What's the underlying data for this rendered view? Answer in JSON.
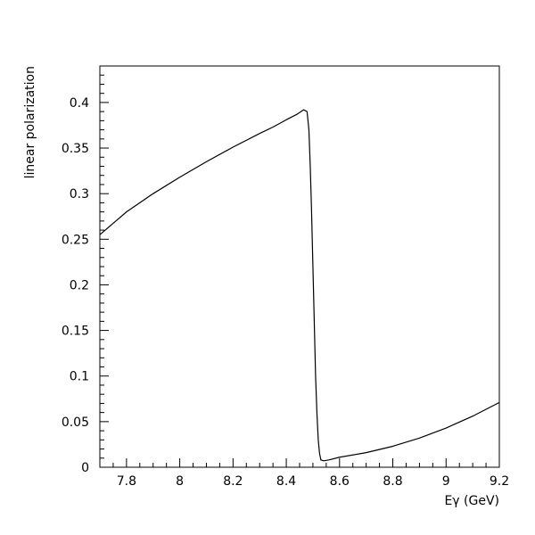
{
  "chart_data": {
    "type": "line",
    "title": "",
    "xlabel": "Eγ (GeV)",
    "ylabel": "linear polarization",
    "xlim": [
      7.7,
      9.2
    ],
    "ylim": [
      0,
      0.44
    ],
    "xticks": [
      7.8,
      8,
      8.2,
      8.4,
      8.6,
      8.8,
      9,
      9.2
    ],
    "xtick_labels": [
      "7.8",
      "8",
      "8.2",
      "8.4",
      "8.6",
      "8.8",
      "9",
      "9.2"
    ],
    "yticks": [
      0,
      0.05,
      0.1,
      0.15,
      0.2,
      0.25,
      0.3,
      0.35,
      0.4
    ],
    "ytick_labels": [
      "0",
      "0.05",
      "0.1",
      "0.15",
      "0.2",
      "0.25",
      "0.3",
      "0.35",
      "0.4"
    ],
    "grid": false,
    "legend": "none",
    "series": [
      {
        "color": "#000000",
        "x": [
          7.7,
          7.8,
          7.9,
          8.0,
          8.1,
          8.2,
          8.3,
          8.35,
          8.4,
          8.44,
          8.465,
          8.478,
          8.485,
          8.49,
          8.495,
          8.5,
          8.505,
          8.51,
          8.515,
          8.52,
          8.525,
          8.53,
          8.54,
          8.56,
          8.6,
          8.7,
          8.8,
          8.9,
          9.0,
          9.1,
          9.2
        ],
        "y": [
          0.255,
          0.28,
          0.3,
          0.318,
          0.335,
          0.351,
          0.366,
          0.373,
          0.381,
          0.387,
          0.392,
          0.39,
          0.37,
          0.33,
          0.28,
          0.22,
          0.16,
          0.1,
          0.06,
          0.03,
          0.015,
          0.008,
          0.007,
          0.008,
          0.011,
          0.016,
          0.023,
          0.032,
          0.043,
          0.056,
          0.071
        ]
      }
    ]
  }
}
